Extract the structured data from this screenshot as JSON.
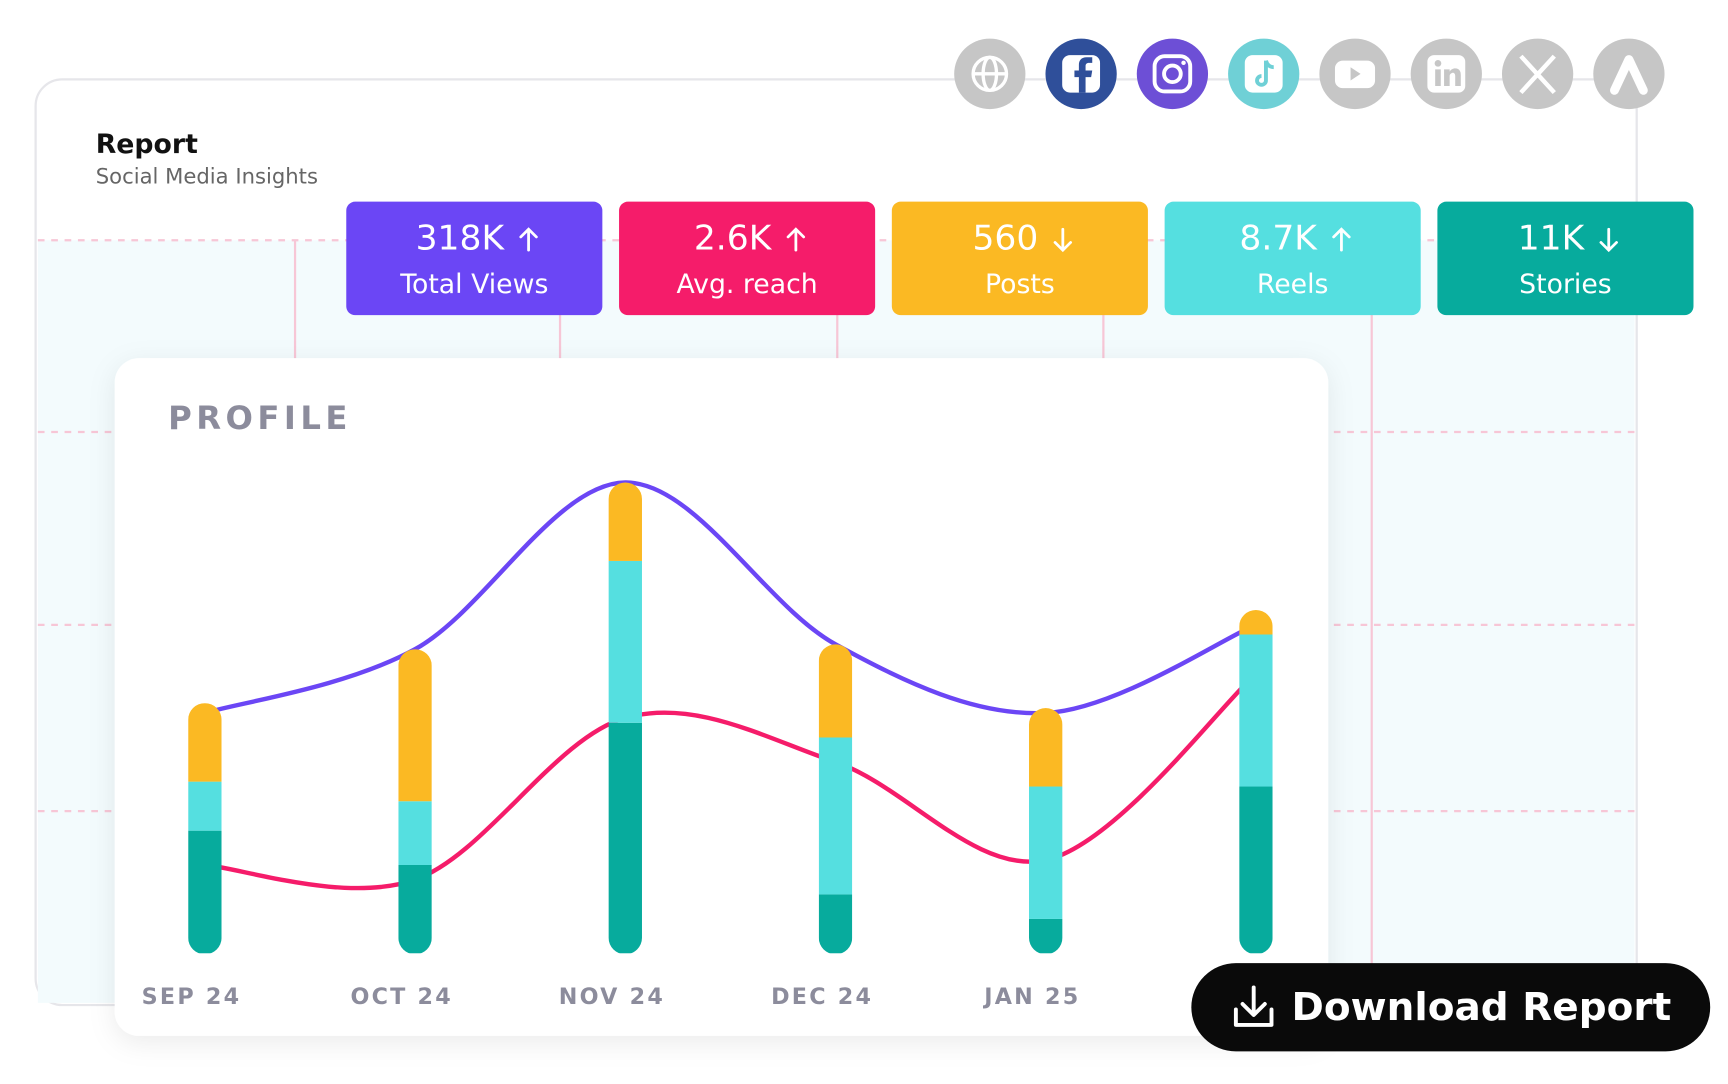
{
  "header": {
    "title": "Report",
    "subtitle": "Social Media Insights"
  },
  "kpis": [
    {
      "value": "318K",
      "label": "Total Views",
      "trend": "up",
      "color": "#6b46f5"
    },
    {
      "value": "2.6K",
      "label": "Avg. reach",
      "trend": "up",
      "color": "#f51c6a"
    },
    {
      "value": "560",
      "label": "Posts",
      "trend": "down",
      "color": "#fbb923"
    },
    {
      "value": "8.7K",
      "label": "Reels",
      "trend": "up",
      "color": "#55dfe0"
    },
    {
      "value": "11K",
      "label": "Stories",
      "trend": "down",
      "color": "#07ab9d"
    }
  ],
  "chart_data": {
    "type": "bar",
    "title": "PROFILE",
    "categories": [
      "SEP 24",
      "OCT 24",
      "NOV 24",
      "DEC 24",
      "JAN 25",
      null
    ],
    "ylim": [
      0,
      100
    ],
    "series": [
      {
        "color": "#07ab9d",
        "values": [
          25,
          18,
          47,
          12,
          7,
          34
        ]
      },
      {
        "color": "#55dfe0",
        "values": [
          10,
          13,
          33,
          32,
          27,
          31
        ]
      },
      {
        "color": "#fbb923",
        "values": [
          16,
          31,
          16,
          19,
          16,
          5
        ]
      }
    ],
    "lines": [
      {
        "color": "#6b46f5",
        "values": [
          49,
          62,
          96,
          63,
          49,
          67
        ]
      },
      {
        "color": "#f51c6a",
        "values": [
          18,
          15,
          48,
          39,
          19,
          57
        ]
      }
    ]
  },
  "button": {
    "label": "Download Report"
  }
}
